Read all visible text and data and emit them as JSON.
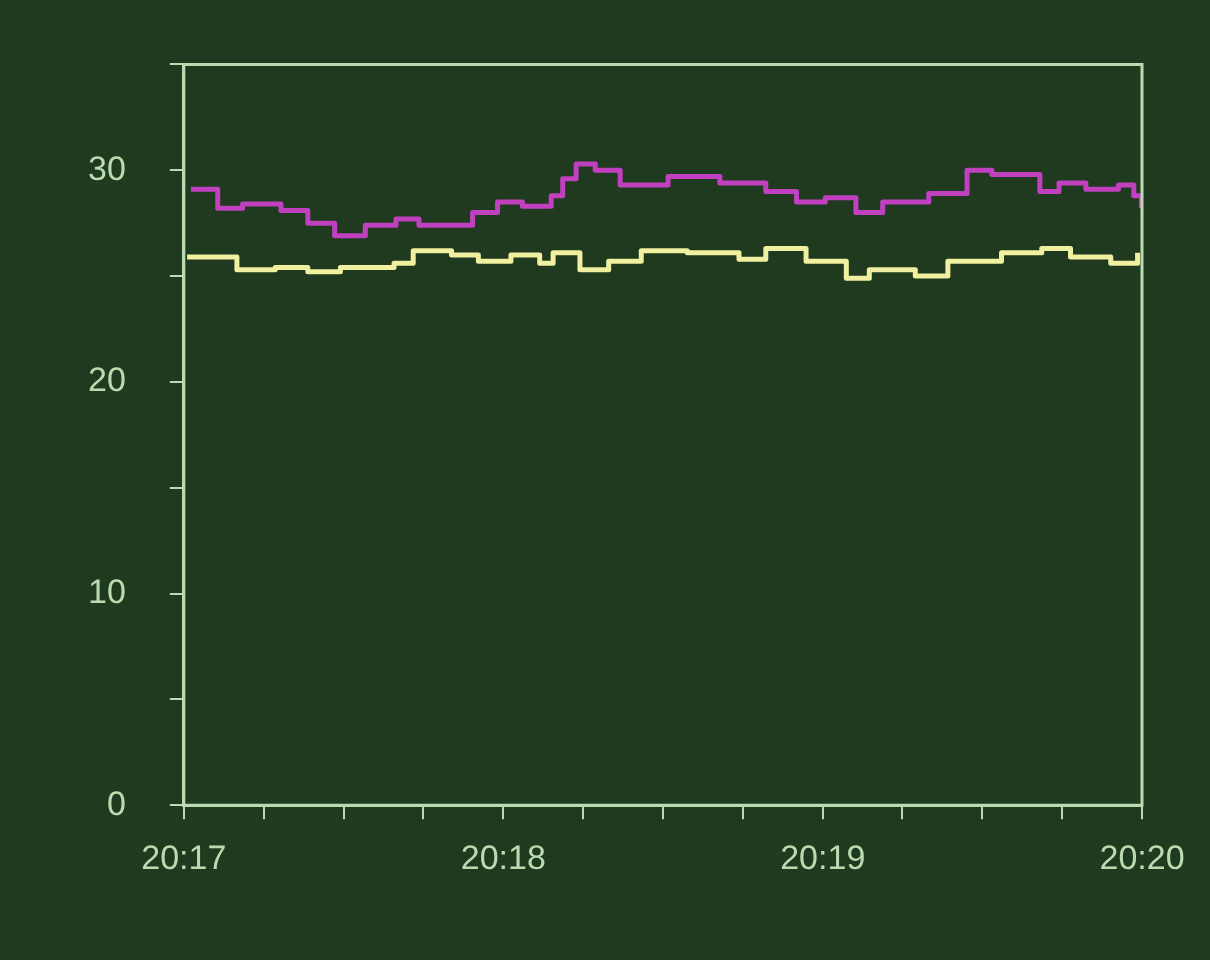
{
  "chart_data": {
    "type": "step",
    "xlim": [
      20.28333,
      20.33333
    ],
    "xticks": [
      {
        "value": 20.28333,
        "label": "20:17"
      },
      {
        "value": 20.2875,
        "label": null
      },
      {
        "value": 20.29167,
        "label": null
      },
      {
        "value": 20.29583,
        "label": null
      },
      {
        "value": 20.3,
        "label": "20:18"
      },
      {
        "value": 20.30417,
        "label": null
      },
      {
        "value": 20.30833,
        "label": null
      },
      {
        "value": 20.3125,
        "label": null
      },
      {
        "value": 20.31667,
        "label": "20:19"
      },
      {
        "value": 20.32083,
        "label": null
      },
      {
        "value": 20.325,
        "label": null
      },
      {
        "value": 20.32917,
        "label": null
      },
      {
        "value": 20.33333,
        "label": "20:20"
      }
    ],
    "ylim": [
      0,
      35
    ],
    "yticks": [
      0,
      {
        "value": 5,
        "label": null
      },
      10,
      {
        "value": 15,
        "label": null
      },
      20,
      {
        "value": 25,
        "label": null
      },
      30,
      {
        "value": 35,
        "label": null
      }
    ],
    "grid": false,
    "legend": false,
    "marker": "none",
    "series": [
      {
        "color": "#c040c0",
        "x": [
          20.2837,
          20.2851,
          20.2864,
          20.2884,
          20.2898,
          20.2912,
          20.2928,
          20.2944,
          20.2956,
          20.2976,
          20.2984,
          20.2997,
          20.301,
          20.3025,
          20.3031,
          20.3038,
          20.3048,
          20.3061,
          20.3086,
          20.3113,
          20.3137,
          20.3153,
          20.3168,
          20.3184,
          20.3198,
          20.3222,
          20.3242,
          20.3255,
          20.328,
          20.329,
          20.3304,
          20.3321,
          20.3329,
          20.3333
        ],
        "values": [
          29.1,
          28.2,
          28.4,
          28.1,
          27.5,
          26.9,
          27.4,
          27.7,
          27.4,
          27.4,
          28.0,
          28.5,
          28.3,
          28.8,
          29.6,
          30.3,
          30.0,
          29.3,
          29.7,
          29.4,
          29.0,
          28.5,
          28.7,
          28.0,
          28.5,
          28.9,
          30.0,
          29.8,
          29.0,
          29.4,
          29.1,
          29.3,
          28.8,
          28.2
        ]
      },
      {
        "color": "#f0f0a0",
        "x": [
          20.2835,
          20.2851,
          20.2861,
          20.2881,
          20.2898,
          20.2915,
          20.2943,
          20.2953,
          20.2973,
          20.2987,
          20.3004,
          20.3019,
          20.3026,
          20.304,
          20.3055,
          20.3072,
          20.3096,
          20.3113,
          20.3123,
          20.3137,
          20.3158,
          20.3179,
          20.3191,
          20.3215,
          20.3232,
          20.326,
          20.3281,
          20.3296,
          20.3317,
          20.3331
        ],
        "values": [
          25.9,
          25.9,
          25.3,
          25.4,
          25.2,
          25.4,
          25.6,
          26.2,
          26.0,
          25.7,
          26.0,
          25.6,
          26.1,
          25.3,
          25.7,
          26.2,
          26.1,
          26.1,
          25.8,
          26.3,
          25.7,
          24.9,
          25.3,
          25.0,
          25.7,
          26.1,
          26.3,
          25.9,
          25.6,
          26.1
        ]
      }
    ]
  }
}
